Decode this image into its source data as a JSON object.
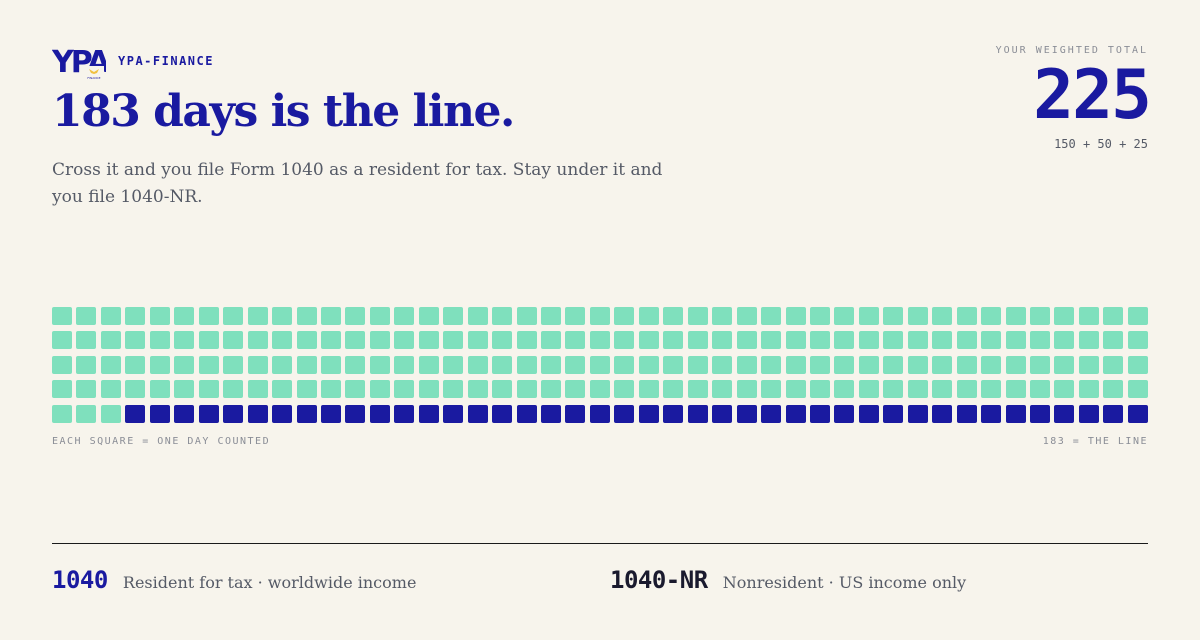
{
  "brand": {
    "name": "YPA-FINANCE",
    "logo_text": "YPA",
    "logo_subtext": "FINANCE",
    "logo_icon": "eagle-icon"
  },
  "headline": "183 days is the line.",
  "lede": "Cross it and you file Form 1040 as a resident for tax. Stay under it and you file 1040-NR.",
  "total": {
    "label": "YOUR WEIGHTED TOTAL",
    "value": "225",
    "breakdown": "150 + 50 + 25"
  },
  "grid": {
    "counted_days": 225,
    "line": 183,
    "counted_color": "#7fe0bd",
    "beyond_color": "#1a1aa0",
    "note_left": "EACH SQUARE = ONE DAY COUNTED",
    "note_right": "183 = THE LINE"
  },
  "legend": [
    {
      "code": "1040",
      "description": "Resident for tax · worldwide income",
      "color": "#1a1aa0"
    },
    {
      "code": "1040-NR",
      "description": "Nonresident · US income only",
      "color": "#1a1a2e"
    }
  ]
}
